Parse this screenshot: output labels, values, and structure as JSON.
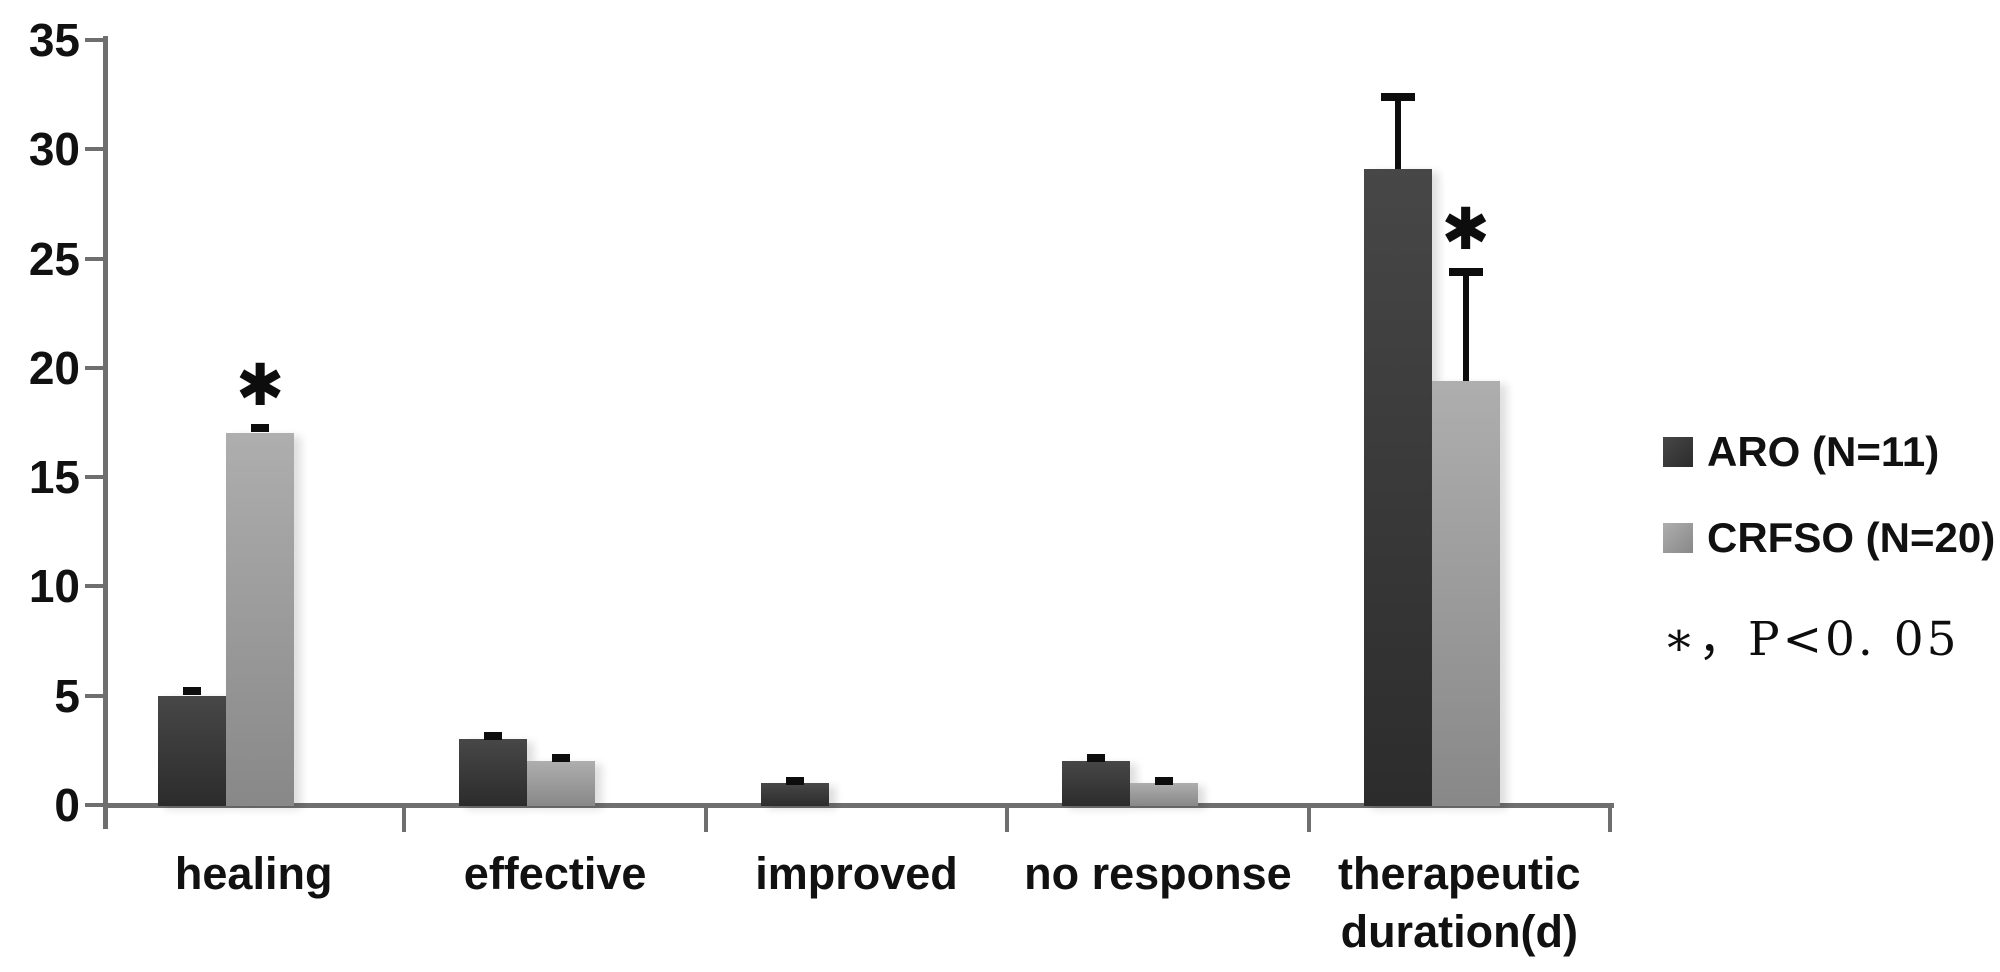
{
  "chart_data": {
    "type": "bar",
    "title": "",
    "xlabel": "",
    "ylabel": "",
    "categories": [
      "healing",
      "effective",
      "improved",
      "no response",
      "therapeutic\nduration(d)"
    ],
    "series": [
      {
        "name": "ARO (N=11)",
        "values": [
          5,
          3,
          1,
          2,
          29.1
        ],
        "errors_plus": [
          0.2,
          0.15,
          0.1,
          0.15,
          3.3
        ],
        "color_top": "#474747",
        "color_bottom": "#2c2c2c"
      },
      {
        "name": "CRFSO (N=20)",
        "values": [
          17,
          2,
          0,
          1,
          19.4
        ],
        "errors_plus": [
          0.25,
          0.15,
          0,
          0.12,
          5.0
        ],
        "color_top": "#aeaeae",
        "color_bottom": "#888888"
      }
    ],
    "significance_marks": [
      {
        "category_index": 0,
        "series_index": 1
      },
      {
        "category_index": 4,
        "series_index": 1
      }
    ],
    "sig_symbol": "✱",
    "note": "∗，P<0. 05",
    "y_axis": {
      "min": 0,
      "max": 35,
      "step": 5,
      "ticks": [
        0,
        5,
        10,
        15,
        20,
        25,
        30,
        35
      ]
    },
    "grid": "off",
    "legend_position": "right",
    "colors": {
      "axis": "#6f6f6f",
      "text": "#111111",
      "error_bar": "#0d0d0d",
      "background": "#ffffff"
    }
  }
}
